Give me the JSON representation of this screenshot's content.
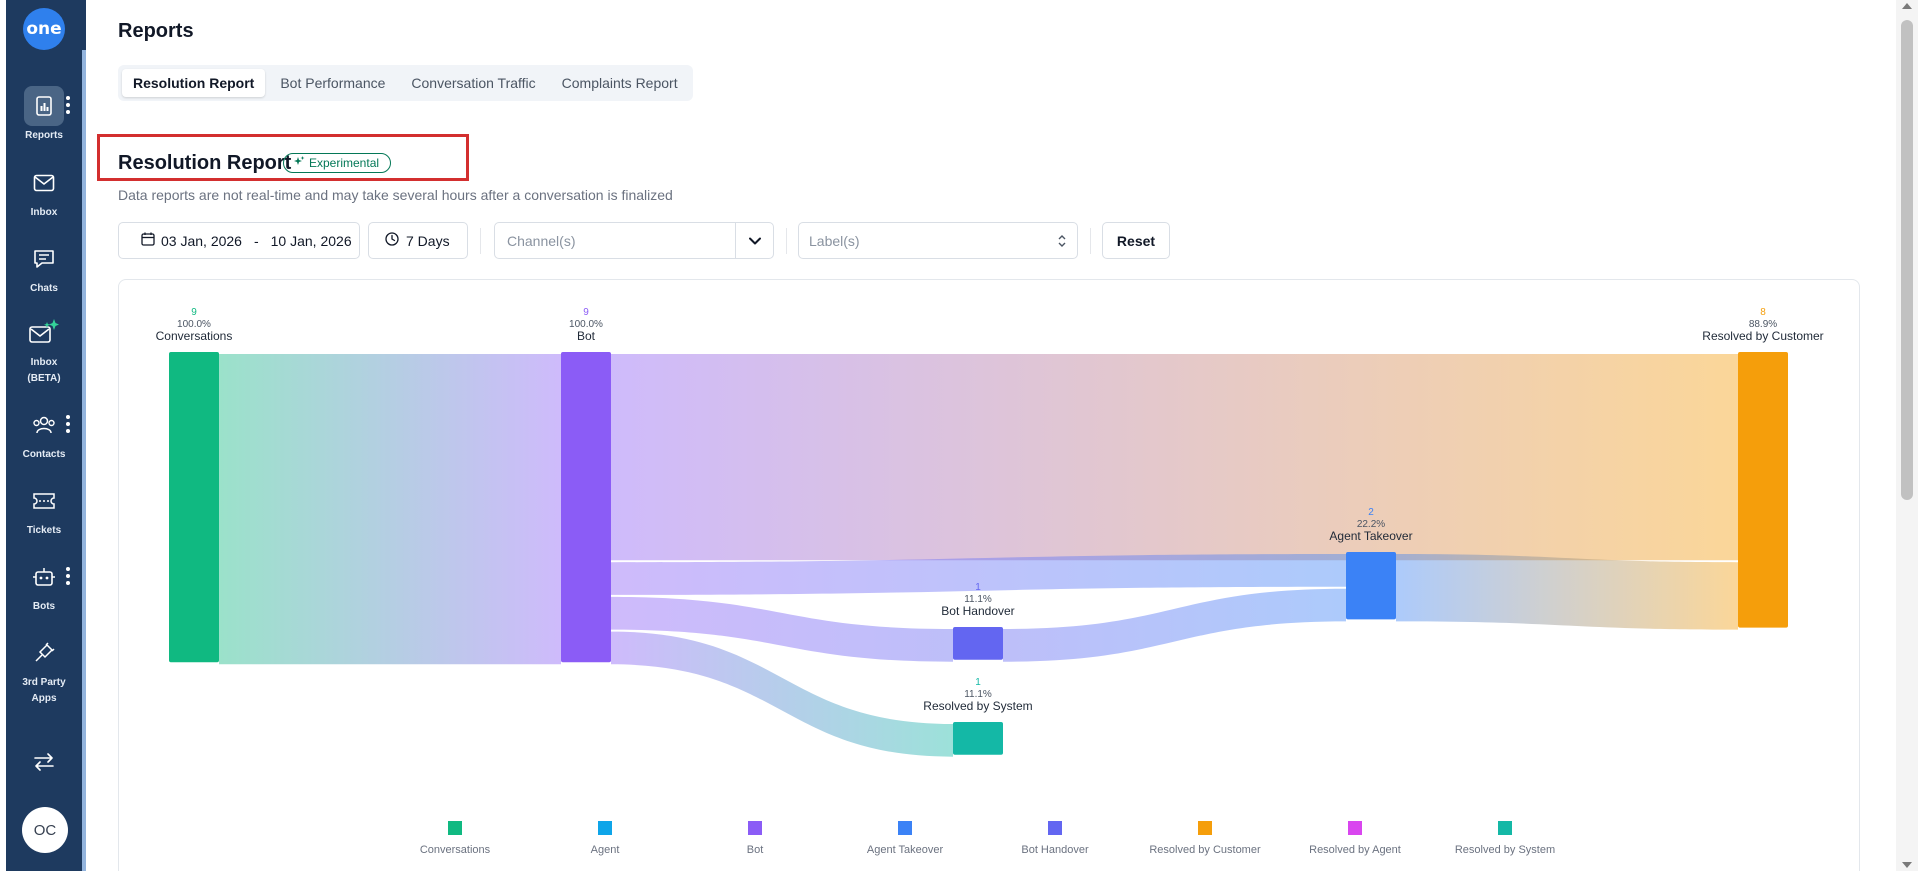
{
  "app": {
    "logo_text": "one",
    "avatar_initials": "OC",
    "icon_names": [
      "reports-icon",
      "inbox-icon",
      "chats-icon",
      "inbox-beta-icon",
      "contacts-icon",
      "tickets-icon",
      "bots-icon",
      "plug-icon",
      "switch-icon"
    ]
  },
  "sidebar": {
    "items": [
      {
        "label": "Reports"
      },
      {
        "label": "Inbox"
      },
      {
        "label": "Chats"
      },
      {
        "label": "Inbox (BETA)"
      },
      {
        "label": "Contacts"
      },
      {
        "label": "Tickets"
      },
      {
        "label": "Bots"
      },
      {
        "label": "3rd Party Apps"
      }
    ]
  },
  "page": {
    "title": "Reports",
    "tabs": [
      {
        "label": "Resolution Report",
        "active": true
      },
      {
        "label": "Bot Performance"
      },
      {
        "label": "Conversation Traffic"
      },
      {
        "label": "Complaints Report"
      }
    ]
  },
  "report": {
    "title": "Resolution Report",
    "badge": "Experimental",
    "subtitle": "Data reports are not real-time and may take several hours after a conversation is finalized"
  },
  "filters": {
    "date_start": "03 Jan, 2026",
    "date_sep": "-",
    "date_end": "10 Jan, 2026",
    "range": "7 Days",
    "channel_placeholder": "Channel(s)",
    "label_placeholder": "Label(s)",
    "reset": "Reset"
  },
  "chart_data": {
    "type": "sankey",
    "nodes": [
      {
        "id": "conversations",
        "name": "Conversations",
        "value": 9,
        "percent": "100.0%",
        "color": "#10b981"
      },
      {
        "id": "bot",
        "name": "Bot",
        "value": 9,
        "percent": "100.0%",
        "color": "#8b5cf6"
      },
      {
        "id": "bot_handover",
        "name": "Bot Handover",
        "value": 1,
        "percent": "11.1%",
        "color": "#6366f1"
      },
      {
        "id": "resolved_system",
        "name": "Resolved by System",
        "value": 1,
        "percent": "11.1%",
        "color": "#14b8a6"
      },
      {
        "id": "agent_takeover",
        "name": "Agent Takeover",
        "value": 2,
        "percent": "22.2%",
        "color": "#3b82f6"
      },
      {
        "id": "resolved_customer",
        "name": "Resolved by Customer",
        "value": 8,
        "percent": "88.9%",
        "color": "#f59e0b"
      }
    ],
    "links": [
      {
        "source": "conversations",
        "target": "bot",
        "value": 9
      },
      {
        "source": "bot",
        "target": "resolved_customer",
        "value": 6
      },
      {
        "source": "bot",
        "target": "agent_takeover",
        "value": 1
      },
      {
        "source": "bot",
        "target": "bot_handover",
        "value": 1
      },
      {
        "source": "bot",
        "target": "resolved_system",
        "value": 1
      },
      {
        "source": "bot_handover",
        "target": "agent_takeover",
        "value": 1
      },
      {
        "source": "agent_takeover",
        "target": "resolved_customer",
        "value": 2
      }
    ],
    "legend": [
      {
        "name": "Conversations",
        "color": "#10b981"
      },
      {
        "name": "Agent",
        "color": "#0ea5e9"
      },
      {
        "name": "Bot",
        "color": "#8b5cf6"
      },
      {
        "name": "Agent Takeover",
        "color": "#3b82f6"
      },
      {
        "name": "Bot Handover",
        "color": "#6366f1"
      },
      {
        "name": "Resolved by Customer",
        "color": "#f59e0b"
      },
      {
        "name": "Resolved by Agent",
        "color": "#d946ef"
      },
      {
        "name": "Resolved by System",
        "color": "#14b8a6"
      }
    ]
  }
}
